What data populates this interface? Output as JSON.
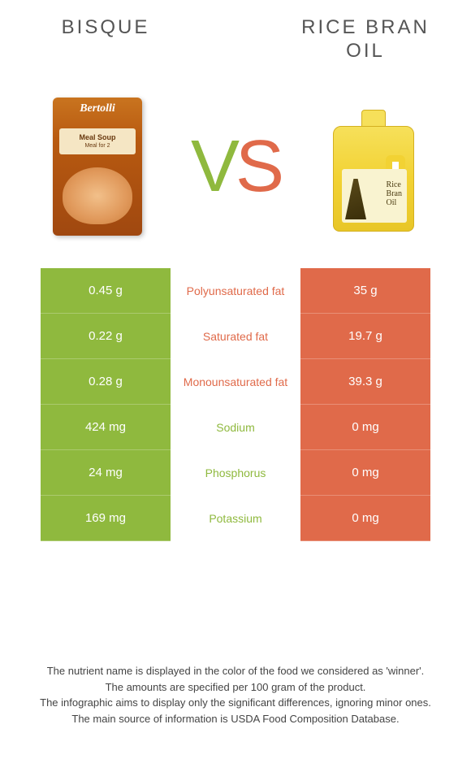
{
  "header": {
    "left_title": "BISQUE",
    "right_title_line1": "RICE BRAN",
    "right_title_line2": "OIL",
    "vs_v": "V",
    "vs_s": "S"
  },
  "colors": {
    "green": "#8fb93e",
    "orange": "#e06a4a"
  },
  "product_left": {
    "brand": "Bertolli",
    "sub": "Meal Soup",
    "sub2": "Meal for 2"
  },
  "product_right": {
    "label_line1": "Rice",
    "label_line2": "Bran",
    "label_line3": "Oil"
  },
  "rows": [
    {
      "left": "0.45 g",
      "mid": "Polyunsaturated fat",
      "right": "35 g",
      "winner": "right"
    },
    {
      "left": "0.22 g",
      "mid": "Saturated fat",
      "right": "19.7 g",
      "winner": "right"
    },
    {
      "left": "0.28 g",
      "mid": "Monounsaturated fat",
      "right": "39.3 g",
      "winner": "right"
    },
    {
      "left": "424 mg",
      "mid": "Sodium",
      "right": "0 mg",
      "winner": "left"
    },
    {
      "left": "24 mg",
      "mid": "Phosphorus",
      "right": "0 mg",
      "winner": "left"
    },
    {
      "left": "169 mg",
      "mid": "Potassium",
      "right": "0 mg",
      "winner": "left"
    }
  ],
  "footer": {
    "l1": "The nutrient name is displayed in the color of the food we considered as 'winner'.",
    "l2": "The amounts are specified per 100 gram of the product.",
    "l3": "The infographic aims to display only the significant differences, ignoring minor ones.",
    "l4": "The main source of information is USDA Food Composition Database."
  }
}
